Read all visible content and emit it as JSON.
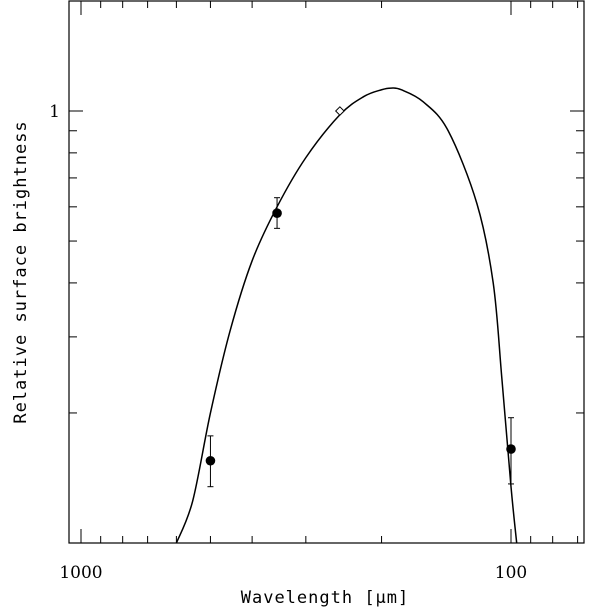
{
  "chart_data": {
    "type": "scatter",
    "title": "",
    "xlabel": "Wavelength [μm]",
    "ylabel": "Relative surface brightness",
    "x_scale": "log",
    "x_reversed": true,
    "y_scale": "log",
    "xlim": [
      1000,
      70
    ],
    "ylim": [
      0.1,
      1.35
    ],
    "x_tick_labels": [
      {
        "value": 1000,
        "label": "1000"
      },
      {
        "value": 100,
        "label": "100"
      }
    ],
    "y_tick_labels": [
      {
        "value": 1,
        "label": "1"
      }
    ],
    "grid": false,
    "series": [
      {
        "kind": "points-with-errorbars",
        "marker": "filled-circle",
        "points": [
          {
            "x": 500,
            "y": 0.155,
            "yerr_low": 0.02,
            "yerr_high": 0.022
          },
          {
            "x": 350,
            "y": 0.58,
            "yerr_low": 0.045,
            "yerr_high": 0.05
          },
          {
            "x": 100,
            "y": 0.165,
            "yerr_low": 0.028,
            "yerr_high": 0.03
          }
        ]
      },
      {
        "kind": "point",
        "marker": "open-diamond",
        "points": [
          {
            "x": 250,
            "y": 1.0
          }
        ]
      },
      {
        "kind": "curve",
        "points": [
          {
            "x": 600,
            "y": 0.1
          },
          {
            "x": 550,
            "y": 0.125
          },
          {
            "x": 500,
            "y": 0.2
          },
          {
            "x": 450,
            "y": 0.31
          },
          {
            "x": 400,
            "y": 0.45
          },
          {
            "x": 350,
            "y": 0.6
          },
          {
            "x": 300,
            "y": 0.78
          },
          {
            "x": 250,
            "y": 0.98
          },
          {
            "x": 220,
            "y": 1.08
          },
          {
            "x": 200,
            "y": 1.12
          },
          {
            "x": 190,
            "y": 1.13
          },
          {
            "x": 180,
            "y": 1.12
          },
          {
            "x": 160,
            "y": 1.05
          },
          {
            "x": 140,
            "y": 0.9
          },
          {
            "x": 120,
            "y": 0.61
          },
          {
            "x": 110,
            "y": 0.4
          },
          {
            "x": 105,
            "y": 0.24
          },
          {
            "x": 100,
            "y": 0.135
          },
          {
            "x": 97,
            "y": 0.1
          }
        ]
      }
    ]
  }
}
